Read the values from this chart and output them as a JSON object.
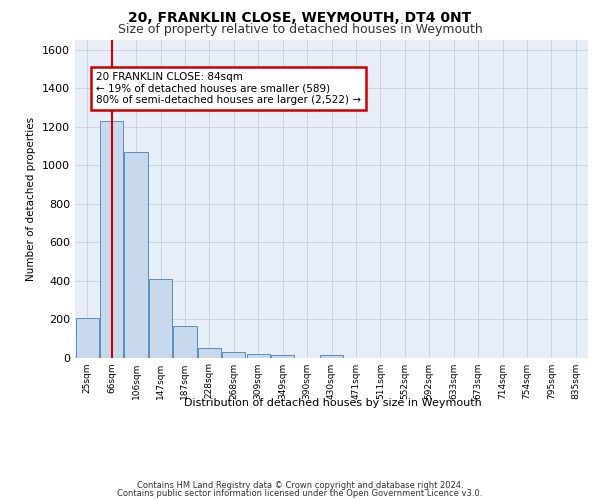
{
  "title1": "20, FRANKLIN CLOSE, WEYMOUTH, DT4 0NT",
  "title2": "Size of property relative to detached houses in Weymouth",
  "xlabel": "Distribution of detached houses by size in Weymouth",
  "ylabel": "Number of detached properties",
  "categories": [
    "25sqm",
    "66sqm",
    "106sqm",
    "147sqm",
    "187sqm",
    "228sqm",
    "268sqm",
    "309sqm",
    "349sqm",
    "390sqm",
    "430sqm",
    "471sqm",
    "511sqm",
    "552sqm",
    "592sqm",
    "633sqm",
    "673sqm",
    "714sqm",
    "754sqm",
    "795sqm",
    "835sqm"
  ],
  "values": [
    205,
    1230,
    1070,
    410,
    165,
    48,
    28,
    20,
    15,
    0,
    15,
    0,
    0,
    0,
    0,
    0,
    0,
    0,
    0,
    0,
    0
  ],
  "bar_color": "#c9d9ed",
  "bar_edge_color": "#5b8dc0",
  "grid_color": "#c8d0dc",
  "background_color": "#e8eef8",
  "property_line_x": 1.0,
  "annotation_text": "20 FRANKLIN CLOSE: 84sqm\n← 19% of detached houses are smaller (589)\n80% of semi-detached houses are larger (2,522) →",
  "annotation_box_color": "#ffffff",
  "annotation_box_edge": "#cc0000",
  "property_line_color": "#cc0000",
  "ylim": [
    0,
    1650
  ],
  "yticks": [
    0,
    200,
    400,
    600,
    800,
    1000,
    1200,
    1400,
    1600
  ],
  "footer1": "Contains HM Land Registry data © Crown copyright and database right 2024.",
  "footer2": "Contains public sector information licensed under the Open Government Licence v3.0."
}
